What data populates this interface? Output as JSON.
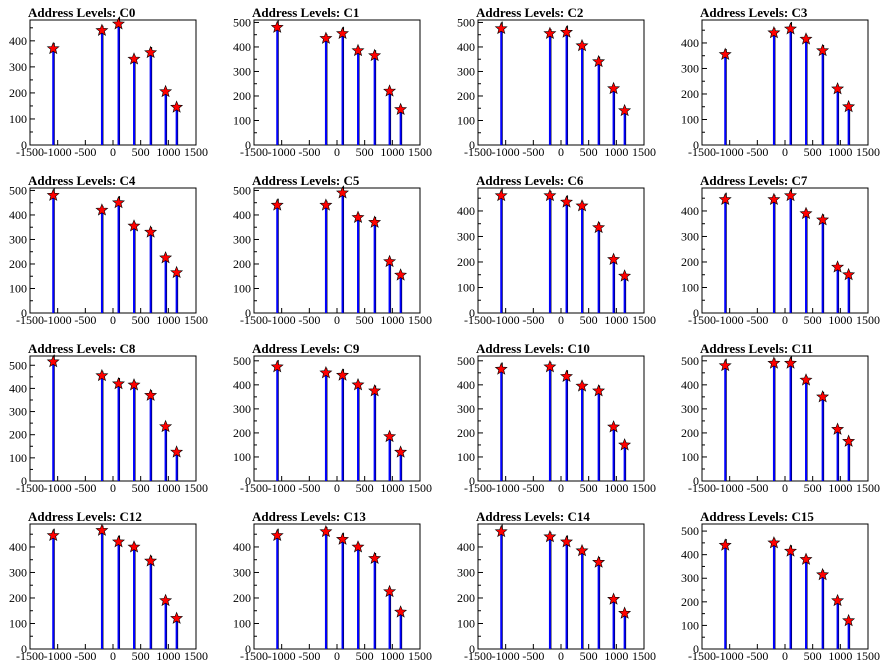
{
  "chart_data": [
    {
      "type": "bar",
      "title": "Address Levels: C0",
      "xlim": [
        -1500,
        1500
      ],
      "ylim": [
        0,
        480
      ],
      "yticks": [
        0,
        100,
        200,
        300,
        400
      ],
      "xticks": [
        -1500,
        -1000,
        -500,
        0,
        500,
        1000,
        1500
      ],
      "peaks": [
        {
          "x": -1080,
          "y": 370
        },
        {
          "x": -200,
          "y": 440
        },
        {
          "x": 100,
          "y": 465
        },
        {
          "x": 380,
          "y": 330
        },
        {
          "x": 680,
          "y": 355
        },
        {
          "x": 950,
          "y": 205
        },
        {
          "x": 1150,
          "y": 145
        }
      ]
    },
    {
      "type": "bar",
      "title": "Address Levels: C1",
      "xlim": [
        -1500,
        1500
      ],
      "ylim": [
        0,
        510
      ],
      "yticks": [
        0,
        100,
        200,
        300,
        400,
        500
      ],
      "xticks": [
        -1500,
        -1000,
        -500,
        0,
        500,
        1000,
        1500
      ],
      "peaks": [
        {
          "x": -1080,
          "y": 480
        },
        {
          "x": -200,
          "y": 435
        },
        {
          "x": 100,
          "y": 455
        },
        {
          "x": 380,
          "y": 385
        },
        {
          "x": 680,
          "y": 365
        },
        {
          "x": 950,
          "y": 220
        },
        {
          "x": 1150,
          "y": 145
        }
      ]
    },
    {
      "type": "bar",
      "title": "Address Levels: C2",
      "xlim": [
        -1500,
        1500
      ],
      "ylim": [
        0,
        510
      ],
      "yticks": [
        0,
        100,
        200,
        300,
        400,
        500
      ],
      "xticks": [
        -1500,
        -1000,
        -500,
        0,
        500,
        1000,
        1500
      ],
      "peaks": [
        {
          "x": -1080,
          "y": 475
        },
        {
          "x": -200,
          "y": 455
        },
        {
          "x": 100,
          "y": 460
        },
        {
          "x": 380,
          "y": 405
        },
        {
          "x": 680,
          "y": 340
        },
        {
          "x": 950,
          "y": 230
        },
        {
          "x": 1150,
          "y": 140
        }
      ]
    },
    {
      "type": "bar",
      "title": "Address Levels: C3",
      "xlim": [
        -1500,
        1500
      ],
      "ylim": [
        0,
        490
      ],
      "yticks": [
        0,
        100,
        200,
        300,
        400
      ],
      "xticks": [
        -1500,
        -1000,
        -500,
        0,
        500,
        1000,
        1500
      ],
      "peaks": [
        {
          "x": -1080,
          "y": 355
        },
        {
          "x": -200,
          "y": 440
        },
        {
          "x": 100,
          "y": 455
        },
        {
          "x": 380,
          "y": 415
        },
        {
          "x": 680,
          "y": 370
        },
        {
          "x": 950,
          "y": 220
        },
        {
          "x": 1150,
          "y": 150
        }
      ]
    },
    {
      "type": "bar",
      "title": "Address Levels: C4",
      "xlim": [
        -1500,
        1500
      ],
      "ylim": [
        0,
        510
      ],
      "yticks": [
        0,
        100,
        200,
        300,
        400,
        500
      ],
      "xticks": [
        -1500,
        -1000,
        -500,
        0,
        500,
        1000,
        1500
      ],
      "peaks": [
        {
          "x": -1080,
          "y": 480
        },
        {
          "x": -200,
          "y": 420
        },
        {
          "x": 100,
          "y": 450
        },
        {
          "x": 380,
          "y": 355
        },
        {
          "x": 680,
          "y": 330
        },
        {
          "x": 950,
          "y": 225
        },
        {
          "x": 1150,
          "y": 165
        }
      ]
    },
    {
      "type": "bar",
      "title": "Address Levels: C5",
      "xlim": [
        -1500,
        1500
      ],
      "ylim": [
        0,
        510
      ],
      "yticks": [
        0,
        100,
        200,
        300,
        400,
        500
      ],
      "xticks": [
        -1500,
        -1000,
        -500,
        0,
        500,
        1000,
        1500
      ],
      "peaks": [
        {
          "x": -1080,
          "y": 440
        },
        {
          "x": -200,
          "y": 440
        },
        {
          "x": 100,
          "y": 490
        },
        {
          "x": 380,
          "y": 390
        },
        {
          "x": 680,
          "y": 370
        },
        {
          "x": 950,
          "y": 210
        },
        {
          "x": 1150,
          "y": 155
        }
      ]
    },
    {
      "type": "bar",
      "title": "Address Levels: C6",
      "xlim": [
        -1500,
        1500
      ],
      "ylim": [
        0,
        490
      ],
      "yticks": [
        0,
        100,
        200,
        300,
        400
      ],
      "xticks": [
        -1500,
        -1000,
        -500,
        0,
        500,
        1000,
        1500
      ],
      "peaks": [
        {
          "x": -1080,
          "y": 460
        },
        {
          "x": -200,
          "y": 460
        },
        {
          "x": 100,
          "y": 435
        },
        {
          "x": 380,
          "y": 420
        },
        {
          "x": 680,
          "y": 335
        },
        {
          "x": 950,
          "y": 210
        },
        {
          "x": 1150,
          "y": 145
        }
      ]
    },
    {
      "type": "bar",
      "title": "Address Levels: C7",
      "xlim": [
        -1500,
        1500
      ],
      "ylim": [
        0,
        490
      ],
      "yticks": [
        0,
        100,
        200,
        300,
        400
      ],
      "xticks": [
        -1500,
        -1000,
        -500,
        0,
        500,
        1000,
        1500
      ],
      "peaks": [
        {
          "x": -1080,
          "y": 445
        },
        {
          "x": -200,
          "y": 445
        },
        {
          "x": 100,
          "y": 460
        },
        {
          "x": 380,
          "y": 390
        },
        {
          "x": 680,
          "y": 365
        },
        {
          "x": 950,
          "y": 180
        },
        {
          "x": 1150,
          "y": 150
        }
      ]
    },
    {
      "type": "bar",
      "title": "Address Levels: C8",
      "xlim": [
        -1500,
        1500
      ],
      "ylim": [
        0,
        540
      ],
      "yticks": [
        0,
        100,
        200,
        300,
        400,
        500
      ],
      "xticks": [
        -1500,
        -1000,
        -500,
        0,
        500,
        1000,
        1500
      ],
      "peaks": [
        {
          "x": -1080,
          "y": 515
        },
        {
          "x": -200,
          "y": 455
        },
        {
          "x": 100,
          "y": 420
        },
        {
          "x": 380,
          "y": 415
        },
        {
          "x": 680,
          "y": 370
        },
        {
          "x": 950,
          "y": 235
        },
        {
          "x": 1150,
          "y": 125
        }
      ]
    },
    {
      "type": "bar",
      "title": "Address Levels: C9",
      "xlim": [
        -1500,
        1500
      ],
      "ylim": [
        0,
        520
      ],
      "yticks": [
        0,
        100,
        200,
        300,
        400,
        500
      ],
      "xticks": [
        -1500,
        -1000,
        -500,
        0,
        500,
        1000,
        1500
      ],
      "peaks": [
        {
          "x": -1080,
          "y": 475
        },
        {
          "x": -200,
          "y": 450
        },
        {
          "x": 100,
          "y": 440
        },
        {
          "x": 380,
          "y": 400
        },
        {
          "x": 680,
          "y": 375
        },
        {
          "x": 950,
          "y": 185
        },
        {
          "x": 1150,
          "y": 120
        }
      ]
    },
    {
      "type": "bar",
      "title": "Address Levels: C10",
      "xlim": [
        -1500,
        1500
      ],
      "ylim": [
        0,
        520
      ],
      "yticks": [
        0,
        100,
        200,
        300,
        400,
        500
      ],
      "xticks": [
        -1500,
        -1000,
        -500,
        0,
        500,
        1000,
        1500
      ],
      "peaks": [
        {
          "x": -1080,
          "y": 465
        },
        {
          "x": -200,
          "y": 475
        },
        {
          "x": 100,
          "y": 435
        },
        {
          "x": 380,
          "y": 395
        },
        {
          "x": 680,
          "y": 375
        },
        {
          "x": 950,
          "y": 225
        },
        {
          "x": 1150,
          "y": 150
        }
      ]
    },
    {
      "type": "bar",
      "title": "Address Levels: C11",
      "xlim": [
        -1500,
        1500
      ],
      "ylim": [
        0,
        520
      ],
      "yticks": [
        0,
        100,
        200,
        300,
        400,
        500
      ],
      "xticks": [
        -1500,
        -1000,
        -500,
        0,
        500,
        1000,
        1500
      ],
      "peaks": [
        {
          "x": -1080,
          "y": 480
        },
        {
          "x": -200,
          "y": 490
        },
        {
          "x": 100,
          "y": 490
        },
        {
          "x": 380,
          "y": 420
        },
        {
          "x": 680,
          "y": 350
        },
        {
          "x": 950,
          "y": 215
        },
        {
          "x": 1150,
          "y": 165
        }
      ]
    },
    {
      "type": "bar",
      "title": "Address Levels: C12",
      "xlim": [
        -1500,
        1500
      ],
      "ylim": [
        0,
        490
      ],
      "yticks": [
        0,
        100,
        200,
        300,
        400
      ],
      "xticks": [
        -1500,
        -1000,
        -500,
        0,
        500,
        1000,
        1500
      ],
      "peaks": [
        {
          "x": -1080,
          "y": 445
        },
        {
          "x": -200,
          "y": 465
        },
        {
          "x": 100,
          "y": 420
        },
        {
          "x": 380,
          "y": 400
        },
        {
          "x": 680,
          "y": 345
        },
        {
          "x": 950,
          "y": 190
        },
        {
          "x": 1150,
          "y": 120
        }
      ]
    },
    {
      "type": "bar",
      "title": "Address Levels: C13",
      "xlim": [
        -1500,
        1500
      ],
      "ylim": [
        0,
        490
      ],
      "yticks": [
        0,
        100,
        200,
        300,
        400
      ],
      "xticks": [
        -1500,
        -1000,
        -500,
        0,
        500,
        1000,
        1500
      ],
      "peaks": [
        {
          "x": -1080,
          "y": 445
        },
        {
          "x": -200,
          "y": 460
        },
        {
          "x": 100,
          "y": 430
        },
        {
          "x": 380,
          "y": 400
        },
        {
          "x": 680,
          "y": 355
        },
        {
          "x": 950,
          "y": 225
        },
        {
          "x": 1150,
          "y": 145
        }
      ]
    },
    {
      "type": "bar",
      "title": "Address Levels: C14",
      "xlim": [
        -1500,
        1500
      ],
      "ylim": [
        0,
        490
      ],
      "yticks": [
        0,
        100,
        200,
        300,
        400
      ],
      "xticks": [
        -1500,
        -1000,
        -500,
        0,
        500,
        1000,
        1500
      ],
      "peaks": [
        {
          "x": -1080,
          "y": 460
        },
        {
          "x": -200,
          "y": 440
        },
        {
          "x": 100,
          "y": 420
        },
        {
          "x": 380,
          "y": 385
        },
        {
          "x": 680,
          "y": 340
        },
        {
          "x": 950,
          "y": 195
        },
        {
          "x": 1150,
          "y": 140
        }
      ]
    },
    {
      "type": "bar",
      "title": "Address Levels: C15",
      "xlim": [
        -1500,
        1500
      ],
      "ylim": [
        0,
        530
      ],
      "yticks": [
        0,
        100,
        200,
        300,
        400,
        500
      ],
      "xticks": [
        -1500,
        -1000,
        -500,
        0,
        500,
        1000,
        1500
      ],
      "peaks": [
        {
          "x": -1080,
          "y": 440
        },
        {
          "x": -200,
          "y": 450
        },
        {
          "x": 100,
          "y": 415
        },
        {
          "x": 380,
          "y": 380
        },
        {
          "x": 680,
          "y": 315
        },
        {
          "x": 950,
          "y": 205
        },
        {
          "x": 1150,
          "y": 120
        }
      ]
    }
  ],
  "colors": {
    "bar": "#0000ff",
    "envelope": "#000000",
    "marker_fill": "#ff0000",
    "marker_stroke": "#000000",
    "axis": "#000000"
  }
}
